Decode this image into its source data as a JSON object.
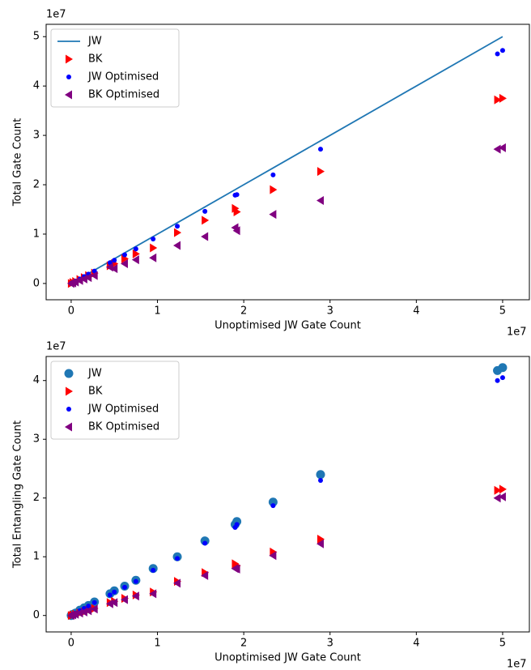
{
  "chart_data": [
    {
      "type": "scatter",
      "x_label": "Unoptimised JW Gate Count",
      "y_label": "Total Gate Count",
      "x_offset_label": "1e7",
      "y_offset_label": "1e7",
      "xlim": [
        -0.29,
        5.31
      ],
      "ylim": [
        -0.33,
        5.25
      ],
      "xticks": [
        0,
        1,
        2,
        3,
        4,
        5
      ],
      "yticks": [
        0,
        1,
        2,
        3,
        4,
        5
      ],
      "legend": "upper left",
      "x": [
        0,
        0.02,
        0.05,
        0.1,
        0.15,
        0.2,
        0.27,
        0.45,
        0.5,
        0.62,
        0.75,
        0.95,
        1.23,
        1.55,
        1.9,
        1.92,
        2.34,
        2.89,
        4.94,
        5.0
      ],
      "series": [
        {
          "name": "JW",
          "color": "#1f77b4",
          "marker": "line",
          "values": [
            0,
            0.02,
            0.05,
            0.1,
            0.15,
            0.2,
            0.27,
            0.45,
            0.5,
            0.62,
            0.75,
            0.95,
            1.23,
            1.55,
            1.9,
            1.92,
            2.34,
            2.89,
            4.94,
            5.0
          ]
        },
        {
          "name": "BK",
          "color": "#ff0000",
          "marker": "triangle-right",
          "values": [
            0,
            0.02,
            0.04,
            0.08,
            0.12,
            0.16,
            0.21,
            0.36,
            0.4,
            0.5,
            0.6,
            0.72,
            1.03,
            1.28,
            1.52,
            1.45,
            1.9,
            2.27,
            3.72,
            3.75
          ]
        },
        {
          "name": "JW Optimised",
          "color": "#0000ff",
          "marker": "dot",
          "values": [
            0,
            0.02,
            0.05,
            0.09,
            0.14,
            0.19,
            0.25,
            0.42,
            0.47,
            0.58,
            0.7,
            0.9,
            1.16,
            1.46,
            1.79,
            1.8,
            2.2,
            2.72,
            4.65,
            4.72
          ]
        },
        {
          "name": "BK Optimised",
          "color": "#800080",
          "marker": "triangle-left",
          "values": [
            0,
            0.01,
            0.03,
            0.06,
            0.09,
            0.12,
            0.16,
            0.33,
            0.3,
            0.4,
            0.48,
            0.52,
            0.77,
            0.95,
            1.13,
            1.07,
            1.4,
            1.68,
            2.72,
            2.75
          ]
        }
      ]
    },
    {
      "type": "scatter",
      "x_label": "Unoptimised JW Gate Count",
      "y_label": "Total Entangling Gate Count",
      "x_offset_label": "1e7",
      "y_offset_label": "1e7",
      "xlim": [
        -0.29,
        5.31
      ],
      "ylim": [
        -0.28,
        4.41
      ],
      "xticks": [
        0,
        1,
        2,
        3,
        4,
        5
      ],
      "yticks": [
        0,
        1,
        2,
        3,
        4
      ],
      "legend": "upper left",
      "x": [
        0,
        0.02,
        0.05,
        0.1,
        0.15,
        0.2,
        0.27,
        0.45,
        0.5,
        0.62,
        0.75,
        0.95,
        1.23,
        1.55,
        1.9,
        1.92,
        2.34,
        2.89,
        4.94,
        5.0
      ],
      "series": [
        {
          "name": "JW",
          "color": "#1f77b4",
          "marker": "circle",
          "values": [
            0,
            0.02,
            0.04,
            0.09,
            0.13,
            0.17,
            0.23,
            0.37,
            0.42,
            0.5,
            0.6,
            0.8,
            1.0,
            1.27,
            1.55,
            1.6,
            1.93,
            2.4,
            4.17,
            4.22
          ]
        },
        {
          "name": "BK",
          "color": "#ff0000",
          "marker": "triangle-right",
          "values": [
            0,
            0.01,
            0.02,
            0.04,
            0.06,
            0.09,
            0.12,
            0.22,
            0.24,
            0.29,
            0.35,
            0.4,
            0.58,
            0.73,
            0.88,
            0.85,
            1.08,
            1.3,
            2.13,
            2.15
          ]
        },
        {
          "name": "JW Optimised",
          "color": "#0000ff",
          "marker": "dot",
          "values": [
            0,
            0.02,
            0.04,
            0.08,
            0.12,
            0.16,
            0.22,
            0.35,
            0.4,
            0.48,
            0.58,
            0.77,
            0.97,
            1.23,
            1.5,
            1.55,
            1.87,
            2.3,
            4.0,
            4.05
          ]
        },
        {
          "name": "BK Optimised",
          "color": "#800080",
          "marker": "triangle-left",
          "values": [
            0,
            0.01,
            0.02,
            0.04,
            0.06,
            0.08,
            0.11,
            0.2,
            0.22,
            0.27,
            0.33,
            0.37,
            0.55,
            0.68,
            0.8,
            0.79,
            1.02,
            1.22,
            2.0,
            2.02
          ]
        }
      ]
    }
  ]
}
